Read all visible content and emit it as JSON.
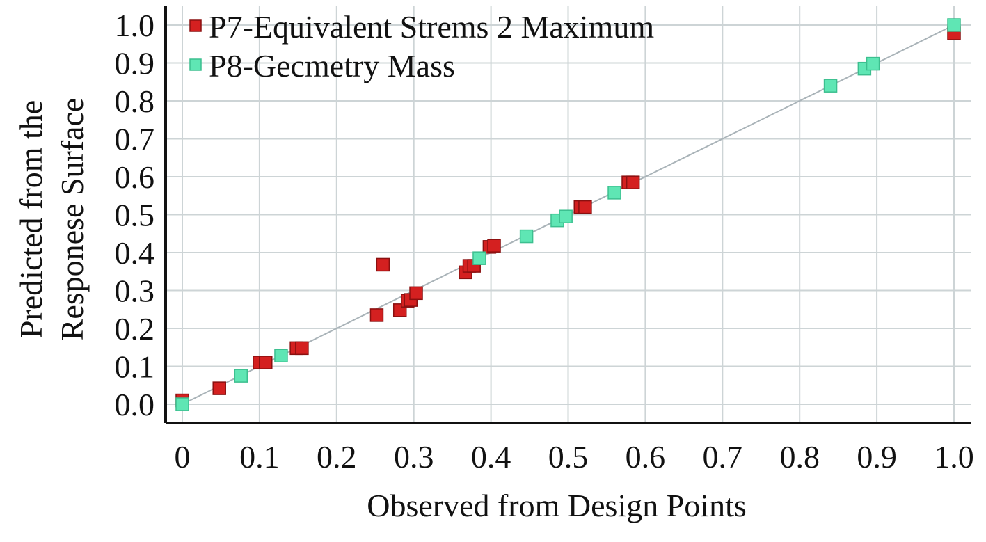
{
  "chart_data": {
    "type": "scatter",
    "xlabel": "Observed from Design Points",
    "ylabel": [
      "Predicted from the",
      "Responese Surface"
    ],
    "xlim": [
      0,
      1.0
    ],
    "ylim": [
      0,
      1.0
    ],
    "x_ticks": [
      "0",
      "0.1",
      "0.2",
      "0.3",
      "0.4",
      "0.5",
      "0.6",
      "0.7",
      "0.8",
      "0.9",
      "1.0"
    ],
    "y_ticks": [
      "0.0",
      "0.1",
      "0.2",
      "0.3",
      "0.4",
      "0.5",
      "0.6",
      "0.7",
      "0.8",
      "0.9",
      "1.0"
    ],
    "grid": true,
    "legend_position": "top-left",
    "reference_line": {
      "from": [
        0,
        0
      ],
      "to": [
        1.0,
        1.0
      ],
      "color": "#a9b3b8"
    },
    "series": [
      {
        "name": "P7-Equivalent Strems 2 Maximum",
        "color": "#d42020",
        "points": [
          [
            0.0,
            0.01
          ],
          [
            0.048,
            0.042
          ],
          [
            0.1,
            0.11
          ],
          [
            0.108,
            0.11
          ],
          [
            0.148,
            0.148
          ],
          [
            0.155,
            0.148
          ],
          [
            0.252,
            0.235
          ],
          [
            0.26,
            0.368
          ],
          [
            0.282,
            0.248
          ],
          [
            0.292,
            0.273
          ],
          [
            0.296,
            0.275
          ],
          [
            0.303,
            0.293
          ],
          [
            0.367,
            0.348
          ],
          [
            0.372,
            0.365
          ],
          [
            0.378,
            0.365
          ],
          [
            0.398,
            0.415
          ],
          [
            0.404,
            0.418
          ],
          [
            0.516,
            0.52
          ],
          [
            0.522,
            0.52
          ],
          [
            0.578,
            0.585
          ],
          [
            0.584,
            0.585
          ],
          [
            1.0,
            0.978
          ]
        ]
      },
      {
        "name": "P8-Gecmetry Mass",
        "color": "#5fe6b4",
        "points": [
          [
            0.0,
            0.0
          ],
          [
            0.076,
            0.075
          ],
          [
            0.128,
            0.128
          ],
          [
            0.385,
            0.385
          ],
          [
            0.446,
            0.443
          ],
          [
            0.486,
            0.485
          ],
          [
            0.497,
            0.495
          ],
          [
            0.56,
            0.558
          ],
          [
            0.84,
            0.84
          ],
          [
            0.884,
            0.885
          ],
          [
            0.895,
            0.898
          ],
          [
            1.0,
            1.0
          ]
        ]
      }
    ]
  }
}
